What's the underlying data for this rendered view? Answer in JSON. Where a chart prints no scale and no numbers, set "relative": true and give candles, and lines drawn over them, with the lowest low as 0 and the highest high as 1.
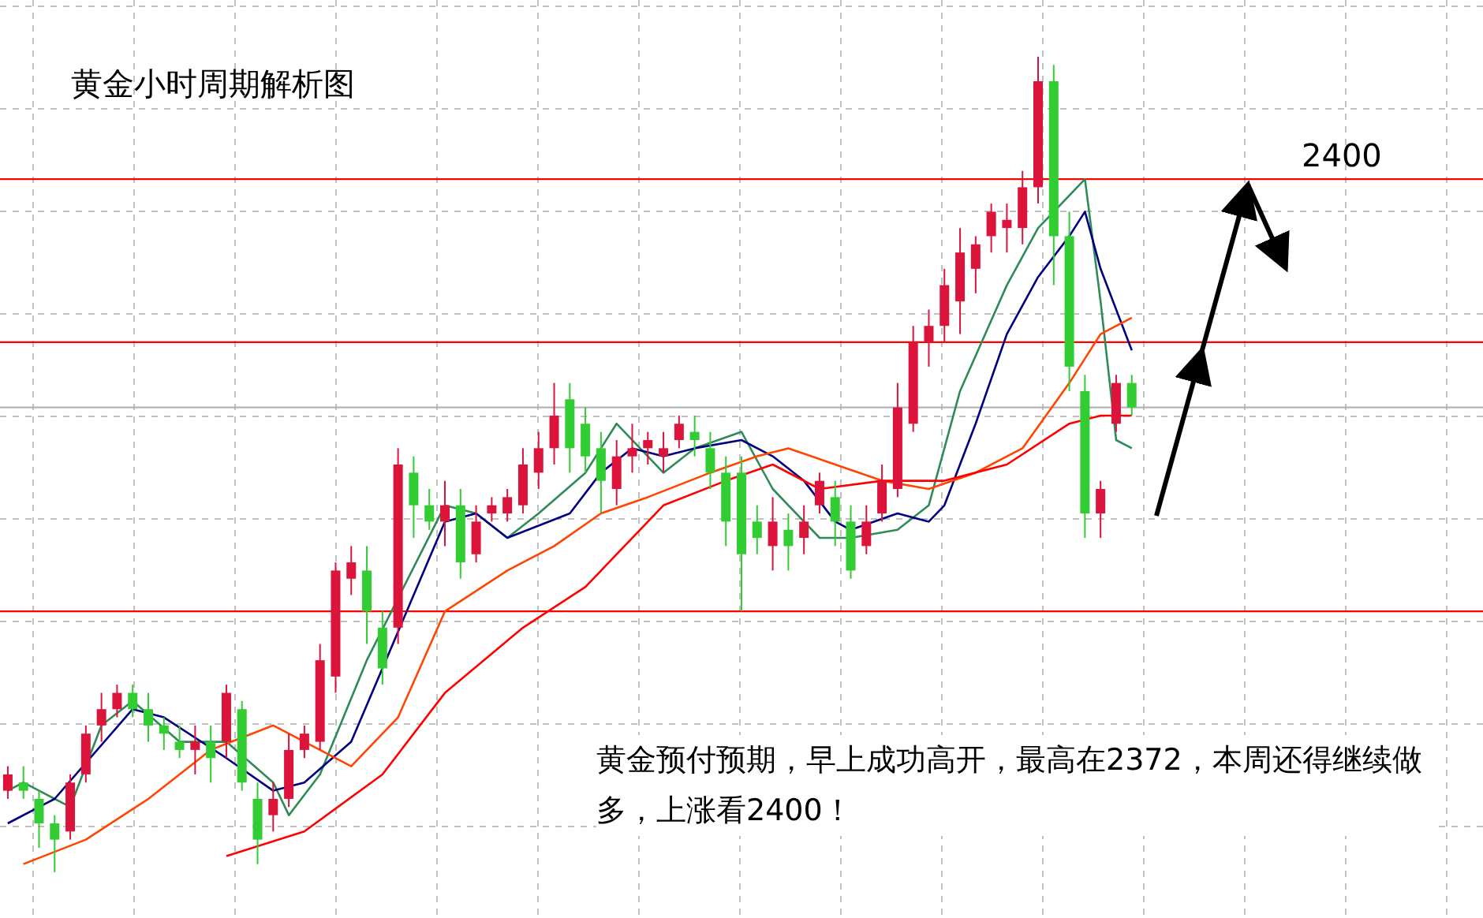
{
  "chart_data": {
    "type": "candlestick",
    "title": "黄金小时周期解析图",
    "relative": true,
    "grid": true,
    "categories": [
      null,
      null,
      null,
      null,
      null,
      null,
      null,
      null,
      null,
      null,
      null,
      null,
      null,
      null,
      null,
      null,
      null,
      null,
      null,
      null,
      null,
      null,
      null,
      null,
      null,
      null,
      null,
      null,
      null,
      null,
      null,
      null,
      null,
      null,
      null,
      null,
      null,
      null,
      null,
      null,
      null,
      null,
      null,
      null,
      null,
      null,
      null,
      null,
      null,
      null,
      null,
      null,
      null,
      null,
      null,
      null,
      null,
      null,
      null,
      null,
      null,
      null,
      null,
      null,
      null,
      null,
      null,
      null,
      null,
      null,
      null,
      null,
      null,
      null,
      null,
      null,
      null,
      null,
      null,
      null,
      null,
      null,
      null,
      null,
      null,
      null,
      null,
      null,
      null,
      null,
      null,
      null,
      null,
      null,
      null
    ],
    "ohlc": [
      [
        0.1,
        0.13,
        0.09,
        0.12
      ],
      [
        0.11,
        0.13,
        0.09,
        0.1
      ],
      [
        0.09,
        0.1,
        0.03,
        0.06
      ],
      [
        0.06,
        0.07,
        0,
        0.04
      ],
      [
        0.05,
        0.12,
        0.04,
        0.11
      ],
      [
        0.12,
        0.18,
        0.11,
        0.17
      ],
      [
        0.18,
        0.22,
        0.16,
        0.2
      ],
      [
        0.2,
        0.23,
        0.19,
        0.22
      ],
      [
        0.22,
        0.23,
        0.19,
        0.2
      ],
      [
        0.2,
        0.22,
        0.16,
        0.18
      ],
      [
        0.18,
        0.19,
        0.15,
        0.17
      ],
      [
        0.16,
        0.18,
        0.14,
        0.15
      ],
      [
        0.15,
        0.18,
        0.12,
        0.16
      ],
      [
        0.16,
        0.18,
        0.11,
        0.14
      ],
      [
        0.16,
        0.23,
        0.14,
        0.22
      ],
      [
        0.2,
        0.21,
        0.1,
        0.11
      ],
      [
        0.09,
        0.11,
        0.01,
        0.04
      ],
      [
        0.07,
        0.11,
        0.05,
        0.09
      ],
      [
        0.09,
        0.17,
        0.08,
        0.15
      ],
      [
        0.15,
        0.18,
        0.14,
        0.17
      ],
      [
        0.16,
        0.28,
        0.15,
        0.26
      ],
      [
        0.24,
        0.38,
        0.22,
        0.37
      ],
      [
        0.36,
        0.4,
        0.34,
        0.38
      ],
      [
        0.37,
        0.4,
        0.28,
        0.32
      ],
      [
        0.3,
        0.32,
        0.23,
        0.25
      ],
      [
        0.3,
        0.52,
        0.28,
        0.5
      ],
      [
        0.49,
        0.51,
        0.41,
        0.45
      ],
      [
        0.45,
        0.47,
        0.42,
        0.43
      ],
      [
        0.43,
        0.48,
        0.4,
        0.45
      ],
      [
        0.45,
        0.47,
        0.36,
        0.38
      ],
      [
        0.39,
        0.45,
        0.38,
        0.43
      ],
      [
        0.44,
        0.46,
        0.43,
        0.45
      ],
      [
        0.44,
        0.47,
        0.43,
        0.46
      ],
      [
        0.45,
        0.52,
        0.44,
        0.5
      ],
      [
        0.49,
        0.54,
        0.47,
        0.52
      ],
      [
        0.52,
        0.6,
        0.5,
        0.56
      ],
      [
        0.58,
        0.6,
        0.49,
        0.52
      ],
      [
        0.55,
        0.57,
        0.49,
        0.51
      ],
      [
        0.52,
        0.54,
        0.44,
        0.48
      ],
      [
        0.47,
        0.53,
        0.45,
        0.51
      ],
      [
        0.51,
        0.55,
        0.49,
        0.52
      ],
      [
        0.52,
        0.54,
        0.5,
        0.53
      ],
      [
        0.51,
        0.54,
        0.49,
        0.52
      ],
      [
        0.53,
        0.56,
        0.52,
        0.55
      ],
      [
        0.54,
        0.56,
        0.51,
        0.53
      ],
      [
        0.52,
        0.54,
        0.47,
        0.49
      ],
      [
        0.49,
        0.51,
        0.4,
        0.43
      ],
      [
        0.49,
        0.51,
        0.32,
        0.39
      ],
      [
        0.43,
        0.45,
        0.39,
        0.41
      ],
      [
        0.4,
        0.46,
        0.37,
        0.43
      ],
      [
        0.42,
        0.44,
        0.37,
        0.4
      ],
      [
        0.41,
        0.45,
        0.39,
        0.43
      ],
      [
        0.45,
        0.49,
        0.44,
        0.48
      ],
      [
        0.46,
        0.48,
        0.4,
        0.43
      ],
      [
        0.43,
        0.45,
        0.36,
        0.37
      ],
      [
        0.4,
        0.45,
        0.39,
        0.43
      ],
      [
        0.44,
        0.5,
        0.43,
        0.48
      ],
      [
        0.47,
        0.6,
        0.46,
        0.57
      ],
      [
        0.55,
        0.67,
        0.54,
        0.65
      ],
      [
        0.65,
        0.69,
        0.62,
        0.67
      ],
      [
        0.67,
        0.74,
        0.65,
        0.72
      ],
      [
        0.7,
        0.79,
        0.66,
        0.76
      ],
      [
        0.74,
        0.78,
        0.71,
        0.77
      ],
      [
        0.78,
        0.82,
        0.76,
        0.81
      ],
      [
        0.79,
        0.82,
        0.76,
        0.8
      ],
      [
        0.79,
        0.86,
        0.77,
        0.84
      ],
      [
        0.84,
        1,
        0.82,
        0.97
      ],
      [
        0.97,
        0.99,
        0.72,
        0.78
      ],
      [
        0.78,
        0.81,
        0.59,
        0.62
      ],
      [
        0.59,
        0.61,
        0.41,
        0.44
      ],
      [
        0.44,
        0.48,
        0.41,
        0.47
      ],
      [
        0.55,
        0.61,
        0.54,
        0.6
      ],
      [
        0.6,
        0.61,
        0.56,
        0.57
      ],
      null,
      null,
      null,
      null,
      null,
      null,
      null,
      null,
      null,
      null,
      null,
      null,
      null,
      null,
      null,
      null,
      null,
      null,
      null,
      null,
      null,
      null
    ],
    "colors": [
      "#dc143c",
      "#32cd32",
      "#32cd32",
      "#32cd32",
      "#dc143c",
      "#dc143c",
      "#dc143c",
      "#dc143c",
      "#32cd32",
      "#32cd32",
      "#32cd32",
      "#32cd32",
      "#dc143c",
      "#32cd32",
      "#dc143c",
      "#32cd32",
      "#32cd32",
      "#dc143c",
      "#dc143c",
      "#dc143c",
      "#dc143c",
      "#dc143c",
      "#dc143c",
      "#32cd32",
      "#32cd32",
      "#dc143c",
      "#32cd32",
      "#32cd32",
      "#dc143c",
      "#32cd32",
      "#dc143c",
      "#dc143c",
      "#dc143c",
      "#dc143c",
      "#dc143c",
      "#dc143c",
      "#32cd32",
      "#32cd32",
      "#32cd32",
      "#dc143c",
      "#dc143c",
      "#dc143c",
      "#dc143c",
      "#dc143c",
      "#32cd32",
      "#32cd32",
      "#32cd32",
      "#32cd32",
      "#32cd32",
      "#dc143c",
      "#32cd32",
      "#dc143c",
      "#dc143c",
      "#32cd32",
      "#32cd32",
      "#dc143c",
      "#dc143c",
      "#dc143c",
      "#dc143c",
      "#dc143c",
      "#dc143c",
      "#dc143c",
      "#dc143c",
      "#dc143c",
      "#dc143c",
      "#dc143c",
      "#dc143c",
      "#32cd32",
      "#32cd32",
      "#32cd32",
      "#dc143c",
      "#dc143c",
      "#32cd32",
      null,
      null,
      null,
      null,
      null,
      null,
      null,
      null,
      null,
      null,
      null,
      null,
      null,
      null,
      null,
      null,
      null,
      null,
      null,
      null,
      null,
      null
    ],
    "series": [
      {
        "type": "line",
        "color": "#2e8b57",
        "values": [
          0.1,
          0.11,
          null,
          null,
          0.08,
          null,
          0.18,
          null,
          0.21,
          null,
          null,
          0.16,
          null,
          null,
          0.16,
          null,
          null,
          0.11,
          0.07,
          null,
          0.12,
          null,
          null,
          0.26,
          null,
          null,
          null,
          null,
          0.45,
          null,
          0.44,
          null,
          0.41,
          null,
          0.44,
          null,
          null,
          0.49,
          null,
          0.55,
          null,
          null,
          0.49,
          null,
          0.52,
          null,
          null,
          0.54,
          null,
          0.47,
          null,
          null,
          0.41,
          null,
          0.41,
          null,
          null,
          0.42,
          null,
          0.45,
          null,
          0.59,
          null,
          null,
          0.72,
          null,
          0.79,
          null,
          null,
          0.85,
          0.7,
          0.53,
          0.52,
          null,
          null,
          null,
          null,
          null,
          null,
          null,
          null,
          null,
          null,
          null,
          null,
          null,
          null,
          null,
          null,
          null,
          null,
          null,
          null,
          null,
          null
        ]
      },
      {
        "type": "line",
        "color": "#000080",
        "values": [
          0.06,
          null,
          null,
          0.09,
          null,
          null,
          null,
          null,
          0.2,
          null,
          0.19,
          null,
          null,
          null,
          0.14,
          null,
          null,
          0.1,
          null,
          0.11,
          null,
          null,
          0.16,
          null,
          null,
          null,
          null,
          null,
          0.43,
          null,
          0.44,
          null,
          0.41,
          null,
          null,
          null,
          0.44,
          null,
          0.49,
          null,
          0.52,
          null,
          0.51,
          null,
          0.52,
          null,
          null,
          0.53,
          null,
          0.51,
          null,
          0.48,
          null,
          0.43,
          0.42,
          null,
          null,
          0.44,
          null,
          0.43,
          0.45,
          null,
          0.55,
          null,
          0.66,
          null,
          0.73,
          null,
          0.78,
          0.81,
          0.74,
          null,
          0.64,
          null,
          null,
          null,
          null,
          null,
          null,
          null,
          null,
          null,
          null,
          null,
          null,
          null,
          null,
          null,
          null,
          null,
          null,
          null,
          null,
          null,
          null
        ]
      },
      {
        "type": "line",
        "color": "#ff4500",
        "values": [
          null,
          0.01,
          null,
          null,
          null,
          0.04,
          null,
          null,
          null,
          0.09,
          null,
          null,
          null,
          0.15,
          null,
          null,
          null,
          0.18,
          null,
          null,
          0.15,
          null,
          0.13,
          null,
          null,
          0.19,
          null,
          null,
          0.32,
          null,
          null,
          null,
          0.37,
          null,
          null,
          0.4,
          null,
          null,
          0.44,
          null,
          null,
          0.46,
          null,
          null,
          null,
          0.49,
          null,
          null,
          0.51,
          null,
          0.52,
          null,
          null,
          0.5,
          null,
          null,
          0.48,
          null,
          null,
          0.47,
          null,
          null,
          0.49,
          null,
          null,
          0.52,
          null,
          null,
          0.6,
          null,
          0.66,
          null,
          0.68,
          null,
          null,
          null,
          null,
          null,
          null,
          null,
          null,
          null,
          null,
          null,
          null,
          null,
          null,
          null,
          null,
          null,
          null,
          null,
          null,
          null,
          null
        ]
      },
      {
        "type": "line",
        "color": "#ff0000",
        "values": [
          null,
          null,
          null,
          null,
          null,
          null,
          null,
          null,
          null,
          null,
          null,
          null,
          null,
          null,
          0.02,
          null,
          null,
          null,
          null,
          0.05,
          null,
          null,
          null,
          null,
          0.12,
          null,
          null,
          null,
          0.22,
          null,
          null,
          null,
          null,
          0.3,
          null,
          null,
          null,
          0.35,
          null,
          null,
          null,
          null,
          0.45,
          null,
          null,
          null,
          0.48,
          null,
          null,
          0.5,
          null,
          null,
          0.47,
          null,
          null,
          null,
          0.48,
          null,
          null,
          null,
          0.48,
          null,
          null,
          null,
          0.5,
          null,
          null,
          null,
          0.55,
          null,
          0.56,
          null,
          0.56,
          null,
          null,
          null,
          null,
          null,
          null,
          null,
          null,
          null,
          null,
          null,
          null,
          null,
          null,
          null,
          null,
          null,
          null,
          null,
          null,
          null,
          null
        ]
      }
    ],
    "ref_lines": [
      {
        "axis": "y",
        "value": 0.85,
        "color": "#ff0000"
      },
      {
        "axis": "y",
        "value": 0.65,
        "color": "#ff0000"
      },
      {
        "axis": "y",
        "value": 0.57,
        "color": "#b4b4b4"
      },
      {
        "axis": "y",
        "value": 0.32,
        "color": "#ff0000"
      }
    ],
    "annotations": [
      {
        "text": "2400",
        "y": 0.85
      },
      "黄金预付预期，早上成功高开，最高在2372，本周还得继续做多，上涨看2400！"
    ]
  }
}
